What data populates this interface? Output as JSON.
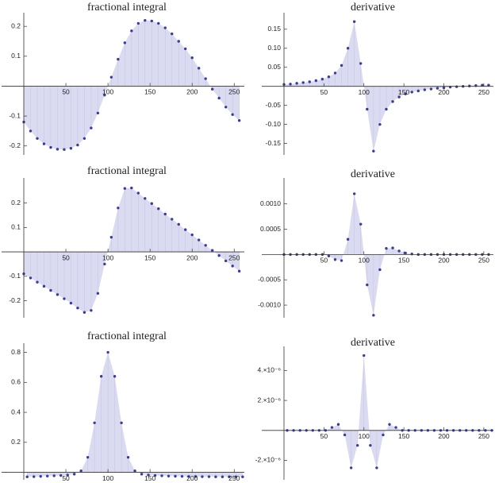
{
  "chart_data": [
    {
      "type": "scatter",
      "title": "fractional integral",
      "fill_to_axis": true,
      "color": "#3c3c96",
      "fill": "#dadaf0",
      "x": [
        0,
        8,
        16,
        24,
        32,
        40,
        48,
        56,
        64,
        72,
        80,
        88,
        96,
        104,
        112,
        120,
        128,
        136,
        144,
        152,
        160,
        168,
        176,
        184,
        192,
        200,
        208,
        216,
        224,
        232,
        240,
        248,
        256
      ],
      "values": [
        -0.12,
        -0.15,
        -0.175,
        -0.193,
        -0.205,
        -0.211,
        -0.212,
        -0.208,
        -0.197,
        -0.175,
        -0.14,
        -0.09,
        -0.03,
        0.03,
        0.09,
        0.145,
        0.185,
        0.21,
        0.22,
        0.218,
        0.21,
        0.195,
        0.175,
        0.15,
        0.125,
        0.095,
        0.06,
        0.025,
        -0.01,
        -0.04,
        -0.07,
        -0.095,
        -0.115
      ],
      "xlim": [
        0,
        262
      ],
      "xticks": [
        50,
        100,
        150,
        200,
        250
      ],
      "ylim": [
        -0.23,
        0.235
      ],
      "yticks": [
        -0.2,
        -0.1,
        0.1,
        0.2
      ]
    },
    {
      "type": "scatter",
      "title": "derivative",
      "fill_to_axis": true,
      "color": "#3c3c96",
      "fill": "#dadaf0",
      "x": [
        0,
        8,
        16,
        24,
        32,
        40,
        48,
        56,
        64,
        72,
        80,
        88,
        96,
        104,
        112,
        120,
        128,
        136,
        144,
        152,
        160,
        168,
        176,
        184,
        192,
        200,
        208,
        216,
        224,
        232,
        240,
        248,
        256
      ],
      "values": [
        0.005,
        0.006,
        0.008,
        0.01,
        0.012,
        0.015,
        0.019,
        0.025,
        0.035,
        0.055,
        0.1,
        0.17,
        0.06,
        -0.06,
        -0.17,
        -0.1,
        -0.06,
        -0.04,
        -0.028,
        -0.02,
        -0.015,
        -0.012,
        -0.009,
        -0.007,
        -0.005,
        -0.004,
        -0.002,
        -0.001,
        0,
        0.001,
        0.002,
        0.003,
        0.003
      ],
      "xlim": [
        0,
        262
      ],
      "xticks": [
        50,
        100,
        150,
        200,
        250
      ],
      "ylim": [
        -0.18,
        0.185
      ],
      "yticks": [
        -0.15,
        {
          "value": -0.1,
          "label": "-0.10"
        },
        -0.05,
        0.05,
        {
          "value": 0.1,
          "label": "0.10"
        },
        0.15
      ]
    },
    {
      "type": "scatter",
      "title": "fractional integral",
      "fill_to_axis": true,
      "color": "#3c3c96",
      "fill": "#dadaf0",
      "x": [
        0,
        8,
        16,
        24,
        32,
        40,
        48,
        56,
        64,
        72,
        80,
        88,
        96,
        104,
        112,
        120,
        128,
        136,
        144,
        152,
        160,
        168,
        176,
        184,
        192,
        200,
        208,
        216,
        224,
        232,
        240,
        248,
        256
      ],
      "values": [
        -0.09,
        -0.107,
        -0.124,
        -0.141,
        -0.158,
        -0.175,
        -0.192,
        -0.21,
        -0.23,
        -0.248,
        -0.24,
        -0.17,
        -0.05,
        0.06,
        0.18,
        0.26,
        0.262,
        0.241,
        0.219,
        0.198,
        0.177,
        0.155,
        0.134,
        0.113,
        0.091,
        0.07,
        0.049,
        0.027,
        0.006,
        -0.015,
        -0.037,
        -0.058,
        -0.079
      ],
      "xlim": [
        0,
        262
      ],
      "xticks": [
        50,
        100,
        150,
        200,
        250
      ],
      "ylim": [
        -0.27,
        0.29
      ],
      "yticks": [
        -0.2,
        -0.1,
        0.1,
        0.2
      ]
    },
    {
      "type": "scatter",
      "title": "derivative",
      "fill_to_axis": true,
      "color": "#3c3c96",
      "fill": "#dadaf0",
      "x": [
        0,
        8,
        16,
        24,
        32,
        40,
        48,
        56,
        64,
        72,
        80,
        88,
        96,
        104,
        112,
        120,
        128,
        136,
        144,
        152,
        160,
        168,
        176,
        184,
        192,
        200,
        208,
        216,
        224,
        232,
        240,
        248,
        256
      ],
      "values": [
        0,
        0,
        0,
        0,
        0,
        0,
        0,
        -3e-05,
        -0.0001,
        -0.00012,
        0.0003,
        0.0012,
        0.0006,
        -0.0006,
        -0.0012,
        -0.0003,
        0.00012,
        0.00013,
        7e-05,
        3e-05,
        1e-05,
        0,
        0,
        0,
        0,
        0,
        0,
        0,
        0,
        0,
        0,
        0,
        0
      ],
      "xlim": [
        0,
        262
      ],
      "xticks": [
        50,
        100,
        150,
        200,
        250
      ],
      "ylim": [
        -0.00125,
        0.00145
      ],
      "yticks": [
        {
          "value": -0.001,
          "label": "-0.0010"
        },
        -0.0005,
        0.0005,
        {
          "value": 0.001,
          "label": "0.0010"
        }
      ]
    },
    {
      "type": "scatter",
      "title": "fractional integral",
      "fill_to_axis": true,
      "color": "#3c3c96",
      "fill": "#dadaf0",
      "x": [
        4,
        12,
        20,
        28,
        36,
        44,
        52,
        60,
        68,
        76,
        84,
        92,
        100,
        108,
        116,
        124,
        132,
        140,
        148,
        156,
        164,
        172,
        180,
        188,
        196,
        204,
        212,
        220,
        228,
        236,
        244,
        252,
        260
      ],
      "values": [
        -0.03,
        -0.029,
        -0.027,
        -0.025,
        -0.023,
        -0.021,
        -0.018,
        -0.012,
        0.01,
        0.1,
        0.33,
        0.64,
        0.8,
        0.64,
        0.33,
        0.1,
        0.01,
        -0.012,
        -0.018,
        -0.021,
        -0.023,
        -0.025,
        -0.026,
        -0.027,
        -0.028,
        -0.028,
        -0.029,
        -0.029,
        -0.03,
        -0.03,
        -0.03,
        -0.03,
        -0.03
      ],
      "xlim": [
        0,
        262
      ],
      "xticks": [
        50,
        100,
        150,
        200,
        250
      ],
      "ylim": [
        -0.05,
        0.84
      ],
      "yticks": [
        0.2,
        0.4,
        0.6,
        0.8
      ]
    },
    {
      "type": "scatter",
      "title": "derivative",
      "fill_to_axis": true,
      "color": "#3c3c96",
      "fill": "#dadaf0",
      "x": [
        4,
        12,
        20,
        28,
        36,
        44,
        52,
        60,
        68,
        76,
        84,
        92,
        100,
        108,
        116,
        124,
        132,
        140,
        148,
        156,
        164,
        172,
        180,
        188,
        196,
        204,
        212,
        220,
        228,
        236,
        244,
        252,
        260
      ],
      "values": [
        0,
        0,
        0,
        0,
        0,
        0,
        0,
        2e-07,
        4e-07,
        -3e-07,
        -2.5e-06,
        -1e-06,
        5e-06,
        -1e-06,
        -2.5e-06,
        -3e-07,
        4e-07,
        2e-07,
        0,
        0,
        0,
        0,
        0,
        0,
        0,
        0,
        0,
        0,
        0,
        0,
        0,
        0,
        0
      ],
      "xlim": [
        0,
        262
      ],
      "xticks": [
        50,
        100,
        150,
        200,
        250
      ],
      "ylim": [
        -3.3e-06,
        5.4e-06
      ],
      "yticks": [
        {
          "value": -2e-06,
          "label": "-2.×10⁻⁶"
        },
        {
          "value": 2e-06,
          "label": "2.×10⁻⁶"
        },
        {
          "value": 4e-06,
          "label": "4.×10⁻⁶"
        }
      ]
    }
  ]
}
